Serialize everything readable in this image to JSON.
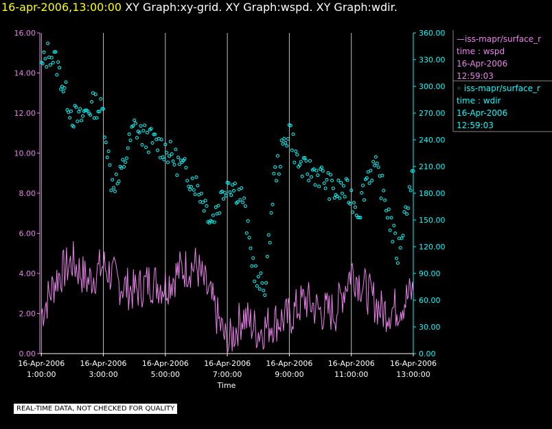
{
  "header": {
    "timestamp": "16-apr-2006,13:00:00",
    "graphs": "XY Graph:xy-grid.  XY Graph:wspd.  XY Graph:wdir."
  },
  "legend": [
    {
      "series": "iss-mapr/surface_r",
      "marker": "line",
      "field": "time : wspd",
      "date": "16-Apr-2006",
      "time": "12:59:03",
      "color": "#ee82ee"
    },
    {
      "series": "iss-mapr/surface_r",
      "marker": "circle",
      "field": "time : wdir",
      "date": "16-Apr-2006",
      "time": "12:59:03",
      "color": "#00ffff"
    }
  ],
  "disclaimer": "REAL-TIME DATA, NOT CHECKED FOR QUALITY",
  "colors": {
    "wspd": "#ee82ee",
    "wdir": "#00ffff",
    "grid": "#bfbfbf",
    "axis": "#ffffff"
  },
  "chart_data": {
    "type": "line+scatter",
    "xlabel": "Time",
    "x_range_hours": [
      0.95,
      13.0
    ],
    "x_ticks": [
      {
        "hour": 1,
        "date": "16-Apr-2006",
        "time": "1:00:00"
      },
      {
        "hour": 3,
        "date": "16-Apr-2006",
        "time": "3:00:00"
      },
      {
        "hour": 5,
        "date": "16-Apr-2006",
        "time": "5:00:00"
      },
      {
        "hour": 7,
        "date": "16-Apr-2006",
        "time": "7:00:00"
      },
      {
        "hour": 9,
        "date": "16-Apr-2006",
        "time": "9:00:00"
      },
      {
        "hour": 11,
        "date": "16-Apr-2006",
        "time": "11:00:00"
      },
      {
        "hour": 13,
        "date": "16-Apr-2006",
        "time": "13:00:00"
      }
    ],
    "y_left": {
      "name": "wspd",
      "range": [
        0,
        16
      ],
      "ticks": [
        "0.00",
        "2.00",
        "4.00",
        "6.00",
        "8.00",
        "10.00",
        "12.00",
        "14.00",
        "16.00"
      ]
    },
    "y_right": {
      "name": "wdir",
      "range": [
        0,
        360
      ],
      "ticks": [
        "0.00",
        "30.00",
        "60.00",
        "90.00",
        "120.00",
        "150.00",
        "180.00",
        "210.00",
        "240.00",
        "270.00",
        "300.00",
        "330.00",
        "360.00"
      ]
    },
    "series": [
      {
        "name": "wspd",
        "axis": "left",
        "style": "line",
        "x": [
          1.0,
          1.5,
          2.0,
          2.5,
          3.0,
          3.5,
          4.0,
          4.5,
          5.0,
          5.5,
          6.0,
          6.5,
          7.0,
          7.5,
          8.0,
          8.5,
          9.0,
          9.5,
          10.0,
          10.5,
          11.0,
          11.5,
          12.0,
          12.5,
          13.0
        ],
        "y": [
          2.0,
          3.8,
          4.6,
          3.6,
          4.4,
          3.5,
          3.1,
          3.6,
          3.4,
          4.2,
          4.4,
          2.6,
          0.4,
          1.9,
          1.1,
          1.6,
          1.8,
          2.7,
          2.1,
          2.1,
          4.2,
          3.1,
          2.1,
          2.3,
          3.1
        ]
      },
      {
        "name": "wdir",
        "axis": "right",
        "style": "markers",
        "x": [
          1.0,
          1.25,
          1.5,
          1.75,
          2.0,
          2.25,
          2.5,
          2.75,
          3.0,
          3.25,
          3.5,
          3.75,
          4.0,
          4.25,
          4.5,
          4.75,
          5.0,
          5.25,
          5.5,
          5.75,
          6.0,
          6.25,
          6.5,
          6.75,
          7.0,
          7.25,
          7.5,
          7.75,
          8.0,
          8.25,
          8.5,
          8.75,
          9.0,
          9.25,
          9.5,
          9.75,
          10.0,
          10.25,
          10.5,
          10.75,
          11.0,
          11.25,
          11.5,
          11.75,
          12.0,
          12.25,
          12.5,
          12.75,
          13.0
        ],
        "y": [
          320,
          340,
          325,
          295,
          268,
          262,
          275,
          280,
          270,
          195,
          192,
          225,
          255,
          245,
          240,
          235,
          230,
          220,
          210,
          200,
          190,
          172,
          150,
          170,
          195,
          185,
          175,
          115,
          75,
          80,
          195,
          225,
          255,
          215,
          205,
          205,
          200,
          190,
          180,
          185,
          175,
          160,
          200,
          210,
          185,
          150,
          110,
          160,
          205
        ]
      }
    ]
  }
}
